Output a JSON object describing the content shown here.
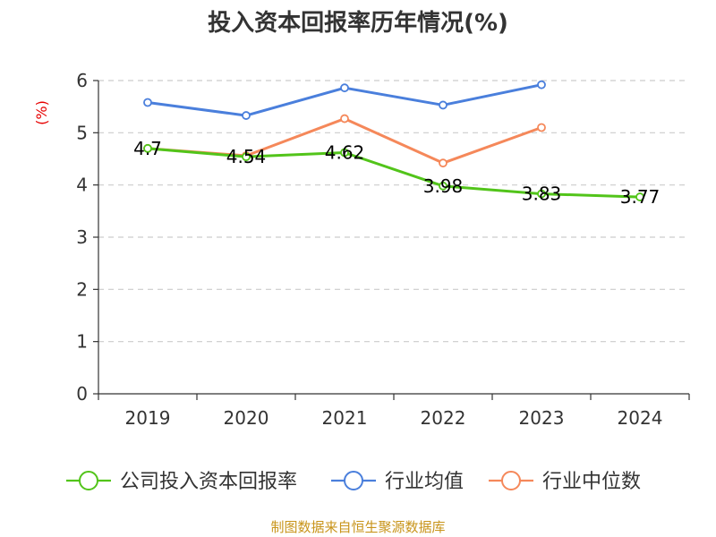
{
  "chart_data": {
    "type": "line",
    "title": "投入资本回报率历年情况(%)",
    "ylabel": "(%)",
    "xlabel": "",
    "categories": [
      "2019",
      "2020",
      "2021",
      "2022",
      "2023",
      "2024"
    ],
    "ylim": [
      0,
      6
    ],
    "yticks": [
      0,
      1,
      2,
      3,
      4,
      5,
      6
    ],
    "grid": true,
    "legend_position": "bottom",
    "series": [
      {
        "name": "公司投入资本回报率",
        "color": "#52c41a",
        "values": [
          4.7,
          4.54,
          4.62,
          3.98,
          3.83,
          3.77
        ],
        "data_labels": [
          "4.7",
          "4.54",
          "4.62",
          "3.98",
          "3.83",
          "3.77"
        ]
      },
      {
        "name": "行业均值",
        "color": "#4a7fdc",
        "values": [
          5.58,
          5.33,
          5.86,
          5.53,
          5.92,
          null
        ]
      },
      {
        "name": "行业中位数",
        "color": "#f5885a",
        "values": [
          4.7,
          4.56,
          5.27,
          4.42,
          5.1,
          null
        ]
      }
    ],
    "source": "制图数据来自恒生聚源数据库"
  }
}
